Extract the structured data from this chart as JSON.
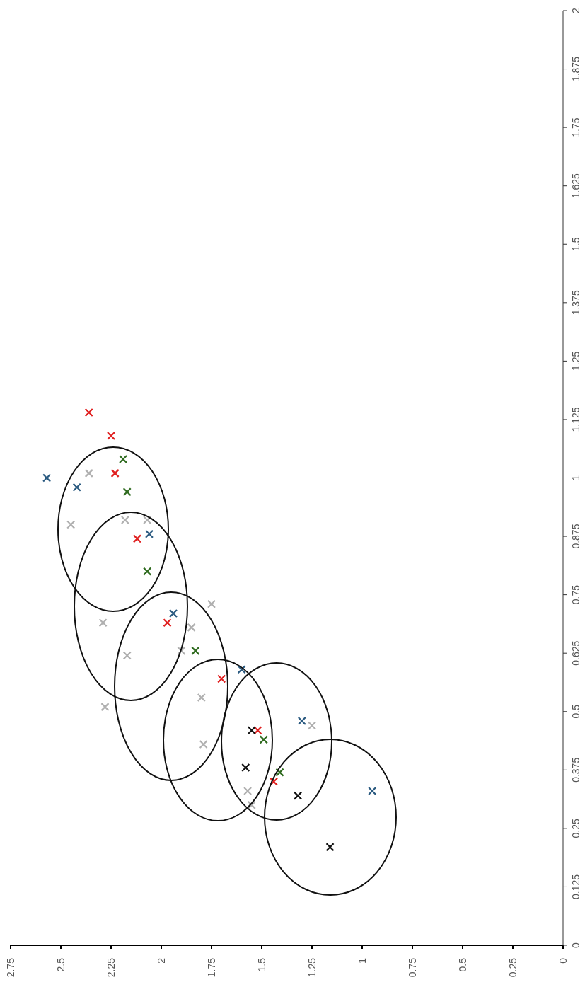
{
  "chart_data": {
    "type": "scatter",
    "marker": "cross",
    "grid": false,
    "legend": false,
    "xlim": [
      2.75,
      0
    ],
    "xticks": [
      2.75,
      2.5,
      2.25,
      2,
      1.75,
      1.5,
      1.25,
      1,
      0.75,
      0.5,
      0.25,
      0
    ],
    "ylim": [
      0,
      2
    ],
    "yticks": [
      0,
      0.125,
      0.25,
      0.375,
      0.5,
      0.625,
      0.75,
      0.875,
      1,
      1.125,
      1.25,
      1.375,
      1.5,
      1.625,
      1.75,
      1.875,
      2
    ],
    "series": [
      {
        "color": "#b0b0b0",
        "x": [
          2.36,
          2.18,
          2.07,
          1.85,
          1.75,
          1.9,
          1.8,
          1.79,
          2.28,
          1.57,
          1.25,
          1.55,
          2.29,
          2.45,
          2.17
        ],
        "values": [
          1.01,
          0.91,
          0.91,
          0.68,
          0.73,
          0.63,
          0.53,
          0.43,
          0.51,
          0.33,
          0.47,
          0.3,
          0.69,
          0.9,
          0.62
        ]
      },
      {
        "color": "#e02020",
        "x": [
          2.36,
          2.25,
          2.23,
          2.12,
          1.97,
          1.7,
          1.52,
          1.44
        ],
        "values": [
          1.14,
          1.09,
          1.01,
          0.87,
          0.69,
          0.57,
          0.46,
          0.35
        ]
      },
      {
        "color": "#2a5a80",
        "x": [
          2.57,
          2.42,
          2.06,
          1.94,
          1.6,
          1.3,
          0.95
        ],
        "values": [
          1.0,
          0.98,
          0.88,
          0.71,
          0.59,
          0.48,
          0.33
        ]
      },
      {
        "color": "#2f6b1f",
        "x": [
          2.19,
          2.17,
          2.07,
          1.83,
          1.49,
          1.41
        ],
        "values": [
          1.04,
          0.97,
          0.8,
          0.63,
          0.44,
          0.37
        ]
      },
      {
        "color": "#111111",
        "x": [
          1.55,
          1.58,
          1.32,
          1.16
        ],
        "values": [
          0.46,
          0.38,
          0.32,
          0.21
        ]
      }
    ]
  }
}
